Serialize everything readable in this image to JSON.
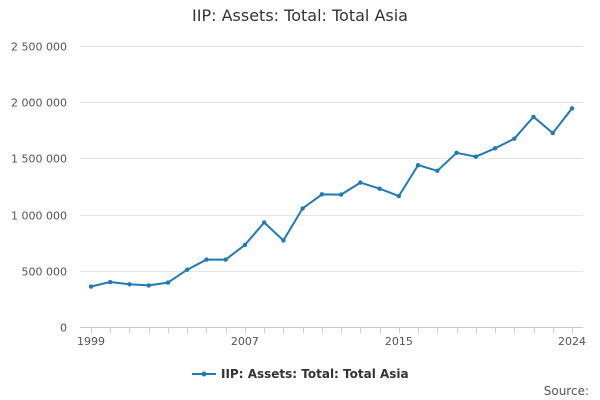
{
  "chart_data": {
    "type": "line",
    "title": "IIP: Assets: Total: Total Asia",
    "xlabel": "",
    "ylabel": "",
    "x": [
      1999,
      2000,
      2001,
      2002,
      2003,
      2004,
      2005,
      2006,
      2007,
      2008,
      2009,
      2010,
      2011,
      2012,
      2013,
      2014,
      2015,
      2016,
      2017,
      2018,
      2019,
      2020,
      2021,
      2022,
      2023,
      2024
    ],
    "series": [
      {
        "name": "IIP: Assets: Total: Total Asia",
        "color": "#1f7bb6",
        "values": [
          360000,
          400000,
          380000,
          370000,
          395000,
          510000,
          600000,
          600000,
          730000,
          930000,
          770000,
          1055000,
          1180000,
          1178000,
          1285000,
          1230000,
          1165000,
          1440000,
          1390000,
          1550000,
          1515000,
          1590000,
          1675000,
          1870000,
          1725000,
          1945000
        ]
      }
    ],
    "ylim": [
      0,
      2500000
    ],
    "yticks": [
      0,
      500000,
      1000000,
      1500000,
      2000000,
      2500000
    ],
    "ytick_labels": [
      "0",
      "500 000",
      "1 000 000",
      "1 500 000",
      "2 000 000",
      "2 500 000"
    ],
    "xticks": [
      1999,
      2007,
      2015,
      2024
    ],
    "xtick_labels": [
      "1999",
      "2007",
      "2015",
      "2024"
    ],
    "grid": true,
    "legend_position": "bottom-center",
    "source_label": "Source:"
  }
}
